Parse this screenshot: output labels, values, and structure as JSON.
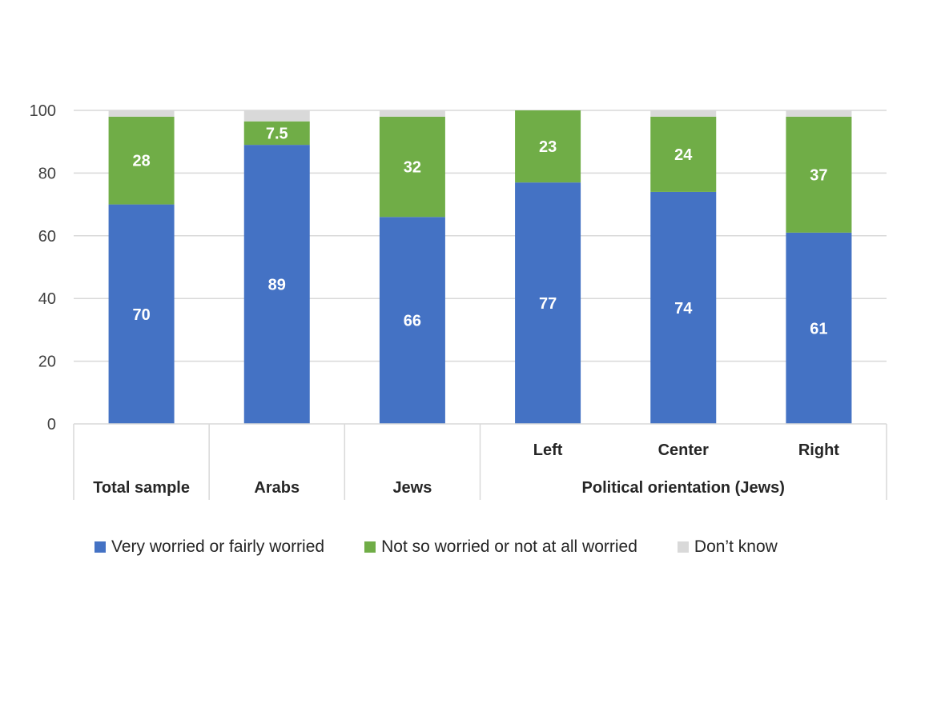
{
  "chart_data": {
    "type": "bar",
    "stacked": true,
    "categories": [
      "Total sample",
      "Arabs",
      "Jews",
      "Left",
      "Center",
      "Right"
    ],
    "group_labels": [
      "Total sample",
      "Arabs",
      "Jews",
      "Political orientation (Jews)"
    ],
    "series": [
      {
        "name": "Very worried or fairly worried",
        "color": "#4472c4",
        "values": [
          70,
          89,
          66,
          77,
          74,
          61
        ],
        "labels": [
          "70",
          "89",
          "66",
          "77",
          "74",
          "61"
        ]
      },
      {
        "name": "Not so worried or not at all worried",
        "color": "#70ad47",
        "values": [
          28,
          7.5,
          32,
          23,
          24,
          37
        ],
        "labels": [
          "28",
          "7.5",
          "32",
          "23",
          "24",
          "37"
        ]
      },
      {
        "name": "Don’t know",
        "color": "#d9d9d9",
        "values": [
          2,
          3.5,
          2,
          0,
          2,
          2
        ]
      }
    ],
    "ylim": [
      0,
      100
    ],
    "yticks": [
      0,
      20,
      40,
      60,
      80,
      100
    ],
    "grid": true,
    "legend_position": "bottom"
  }
}
